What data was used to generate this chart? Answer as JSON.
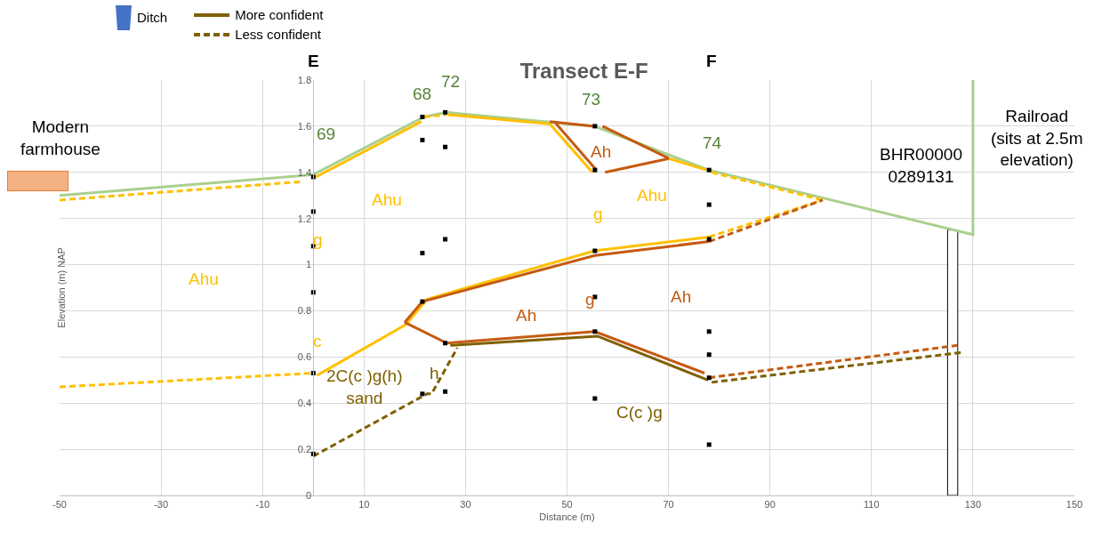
{
  "chart_data": {
    "type": "line",
    "title": "Transect E-F",
    "xlabel": "Distance (m)",
    "ylabel": "Elevation (m) NAP",
    "xlim": [
      -50,
      150
    ],
    "xticks": [
      -50,
      -30,
      -10,
      10,
      30,
      50,
      70,
      90,
      110,
      130,
      150
    ],
    "ylim": [
      0,
      1.8
    ],
    "yticks": [
      0,
      0.2,
      0.4,
      0.6,
      0.8,
      1,
      1.2,
      1.4,
      1.6,
      1.8
    ],
    "grid": true,
    "legend": "top left",
    "series": [
      {
        "name": "Ditch",
        "type": "bar",
        "color": "#4472c4"
      },
      {
        "name": "More confident",
        "line_style": "solid",
        "color": "#7f6000"
      },
      {
        "name": "Less confident",
        "line_style": "dashed",
        "color": "#7f6000"
      },
      {
        "type": "bar",
        "color": "#ffffff",
        "x": [
          126
        ],
        "values": [
          1.15
        ]
      },
      {
        "line_style": "solid",
        "color": "#a9d08e",
        "x": [
          -50,
          0,
          21.8,
          26.2,
          55.4,
          77.9,
          130,
          130
        ],
        "values": [
          1.3,
          1.39,
          1.64,
          1.66,
          1.6,
          1.41,
          1.13,
          1.8
        ]
      },
      {
        "line_style": "dashed",
        "color": "#ffc000",
        "x": [
          -50,
          -2
        ],
        "values": [
          1.28,
          1.36
        ]
      },
      {
        "line_style": "solid",
        "color": "#ffc000",
        "x": [
          0.5,
          21.3
        ],
        "values": [
          1.38,
          1.62
        ]
      },
      {
        "line_style": "dashed",
        "color": "#ffc000",
        "x": [
          21.8,
          26.2
        ],
        "values": [
          1.64,
          1.65
        ]
      },
      {
        "line_style": "solid",
        "color": "#ffc000",
        "x": [
          26.5,
          46.6,
          55
        ],
        "values": [
          1.65,
          1.61,
          1.4
        ]
      },
      {
        "line_style": "solid",
        "color": "#c55a11",
        "x": [
          46.6,
          55.4
        ],
        "values": [
          1.62,
          1.6
        ]
      },
      {
        "line_style": "solid",
        "color": "#c55a11",
        "x": [
          47.5,
          55.8
        ],
        "values": [
          1.62,
          1.41
        ]
      },
      {
        "line_style": "solid",
        "color": "#c55a11",
        "x": [
          57,
          70.1,
          57.5
        ],
        "values": [
          1.6,
          1.46,
          1.4
        ]
      },
      {
        "line_style": "solid",
        "color": "#ffc000",
        "x": [
          70.1,
          77.5
        ],
        "values": [
          1.46,
          1.41
        ]
      },
      {
        "line_style": "dashed",
        "color": "#ffc000",
        "x": [
          78.5,
          100.4
        ],
        "values": [
          1.4,
          1.28
        ]
      },
      {
        "line_style": "solid",
        "color": "#ffc000",
        "x": [
          0.7,
          18.2,
          22.4,
          55.4,
          78
        ],
        "values": [
          0.52,
          0.74,
          0.85,
          1.06,
          1.12
        ]
      },
      {
        "line_style": "dashed",
        "color": "#ffc000",
        "x": [
          78,
          100.4
        ],
        "values": [
          1.12,
          1.28
        ]
      },
      {
        "line_style": "solid",
        "color": "#c55a11",
        "x": [
          18,
          21.5,
          55.5,
          78
        ],
        "values": [
          0.75,
          0.84,
          1.04,
          1.1
        ]
      },
      {
        "line_style": "dashed",
        "color": "#c55a11",
        "x": [
          78,
          100.4
        ],
        "values": [
          1.1,
          1.28
        ]
      },
      {
        "line_style": "solid",
        "color": "#c55a11",
        "x": [
          18,
          26.3,
          55.5,
          77.1
        ],
        "values": [
          0.75,
          0.66,
          0.71,
          0.53
        ]
      },
      {
        "line_style": "dashed",
        "color": "#c55a11",
        "x": [
          78,
          126.9
        ],
        "values": [
          0.51,
          0.65
        ]
      },
      {
        "line_style": "solid",
        "color": "#7f6000",
        "x": [
          27,
          56,
          77.8
        ],
        "values": [
          0.65,
          0.69,
          0.5
        ]
      },
      {
        "line_style": "dashed",
        "color": "#7f6000",
        "x": [
          78.5,
          128
        ],
        "values": [
          0.49,
          0.62
        ]
      },
      {
        "line_style": "dashed",
        "color": "#7f6000",
        "x": [
          0,
          22.4,
          23.3,
          28.4
        ],
        "values": [
          0.17,
          0.44,
          0.44,
          0.64
        ]
      },
      {
        "line_style": "dashed",
        "color": "#ffc000",
        "x": [
          -50,
          0
        ],
        "values": [
          0.47,
          0.53
        ]
      },
      {
        "type": "scatter",
        "marker": "square",
        "color": "#000000",
        "x": [
          0,
          0,
          0,
          0,
          0,
          0,
          21.5,
          21.5,
          21.5,
          21.5,
          21.5,
          26,
          26,
          26,
          26,
          26,
          55.5,
          55.5,
          55.5,
          55.5,
          55.5,
          55.5,
          78,
          78,
          78,
          78,
          78,
          78,
          78
        ],
        "values": [
          1.38,
          1.23,
          1.08,
          0.88,
          0.53,
          0.18,
          1.64,
          1.54,
          1.05,
          0.84,
          0.44,
          1.66,
          1.51,
          1.11,
          0.66,
          0.45,
          1.6,
          1.41,
          1.06,
          0.86,
          0.71,
          0.42,
          1.41,
          1.26,
          1.11,
          0.71,
          0.61,
          0.51,
          0.22
        ]
      }
    ],
    "annotations": [
      "E",
      "F",
      {
        "text": "69",
        "x": 0,
        "y": 1.38
      },
      {
        "text": "68",
        "x": 21.5,
        "y": 1.64
      },
      {
        "text": "72",
        "x": 26,
        "y": 1.66
      },
      {
        "text": "73",
        "x": 55.5,
        "y": 1.6
      },
      {
        "text": "74",
        "x": 78,
        "y": 1.41
      },
      "Ah",
      "Ahu",
      "Ahu",
      "Ahu",
      "g",
      "g",
      "c",
      "g",
      "Ah",
      "Ah",
      "2C(c )g(h)\nsand",
      "h",
      "C(c )g",
      "BHR00000\n0289131",
      "Modern\nfarmhouse",
      "Railroad\n(sits at 2.5m\nelevation)"
    ]
  }
}
